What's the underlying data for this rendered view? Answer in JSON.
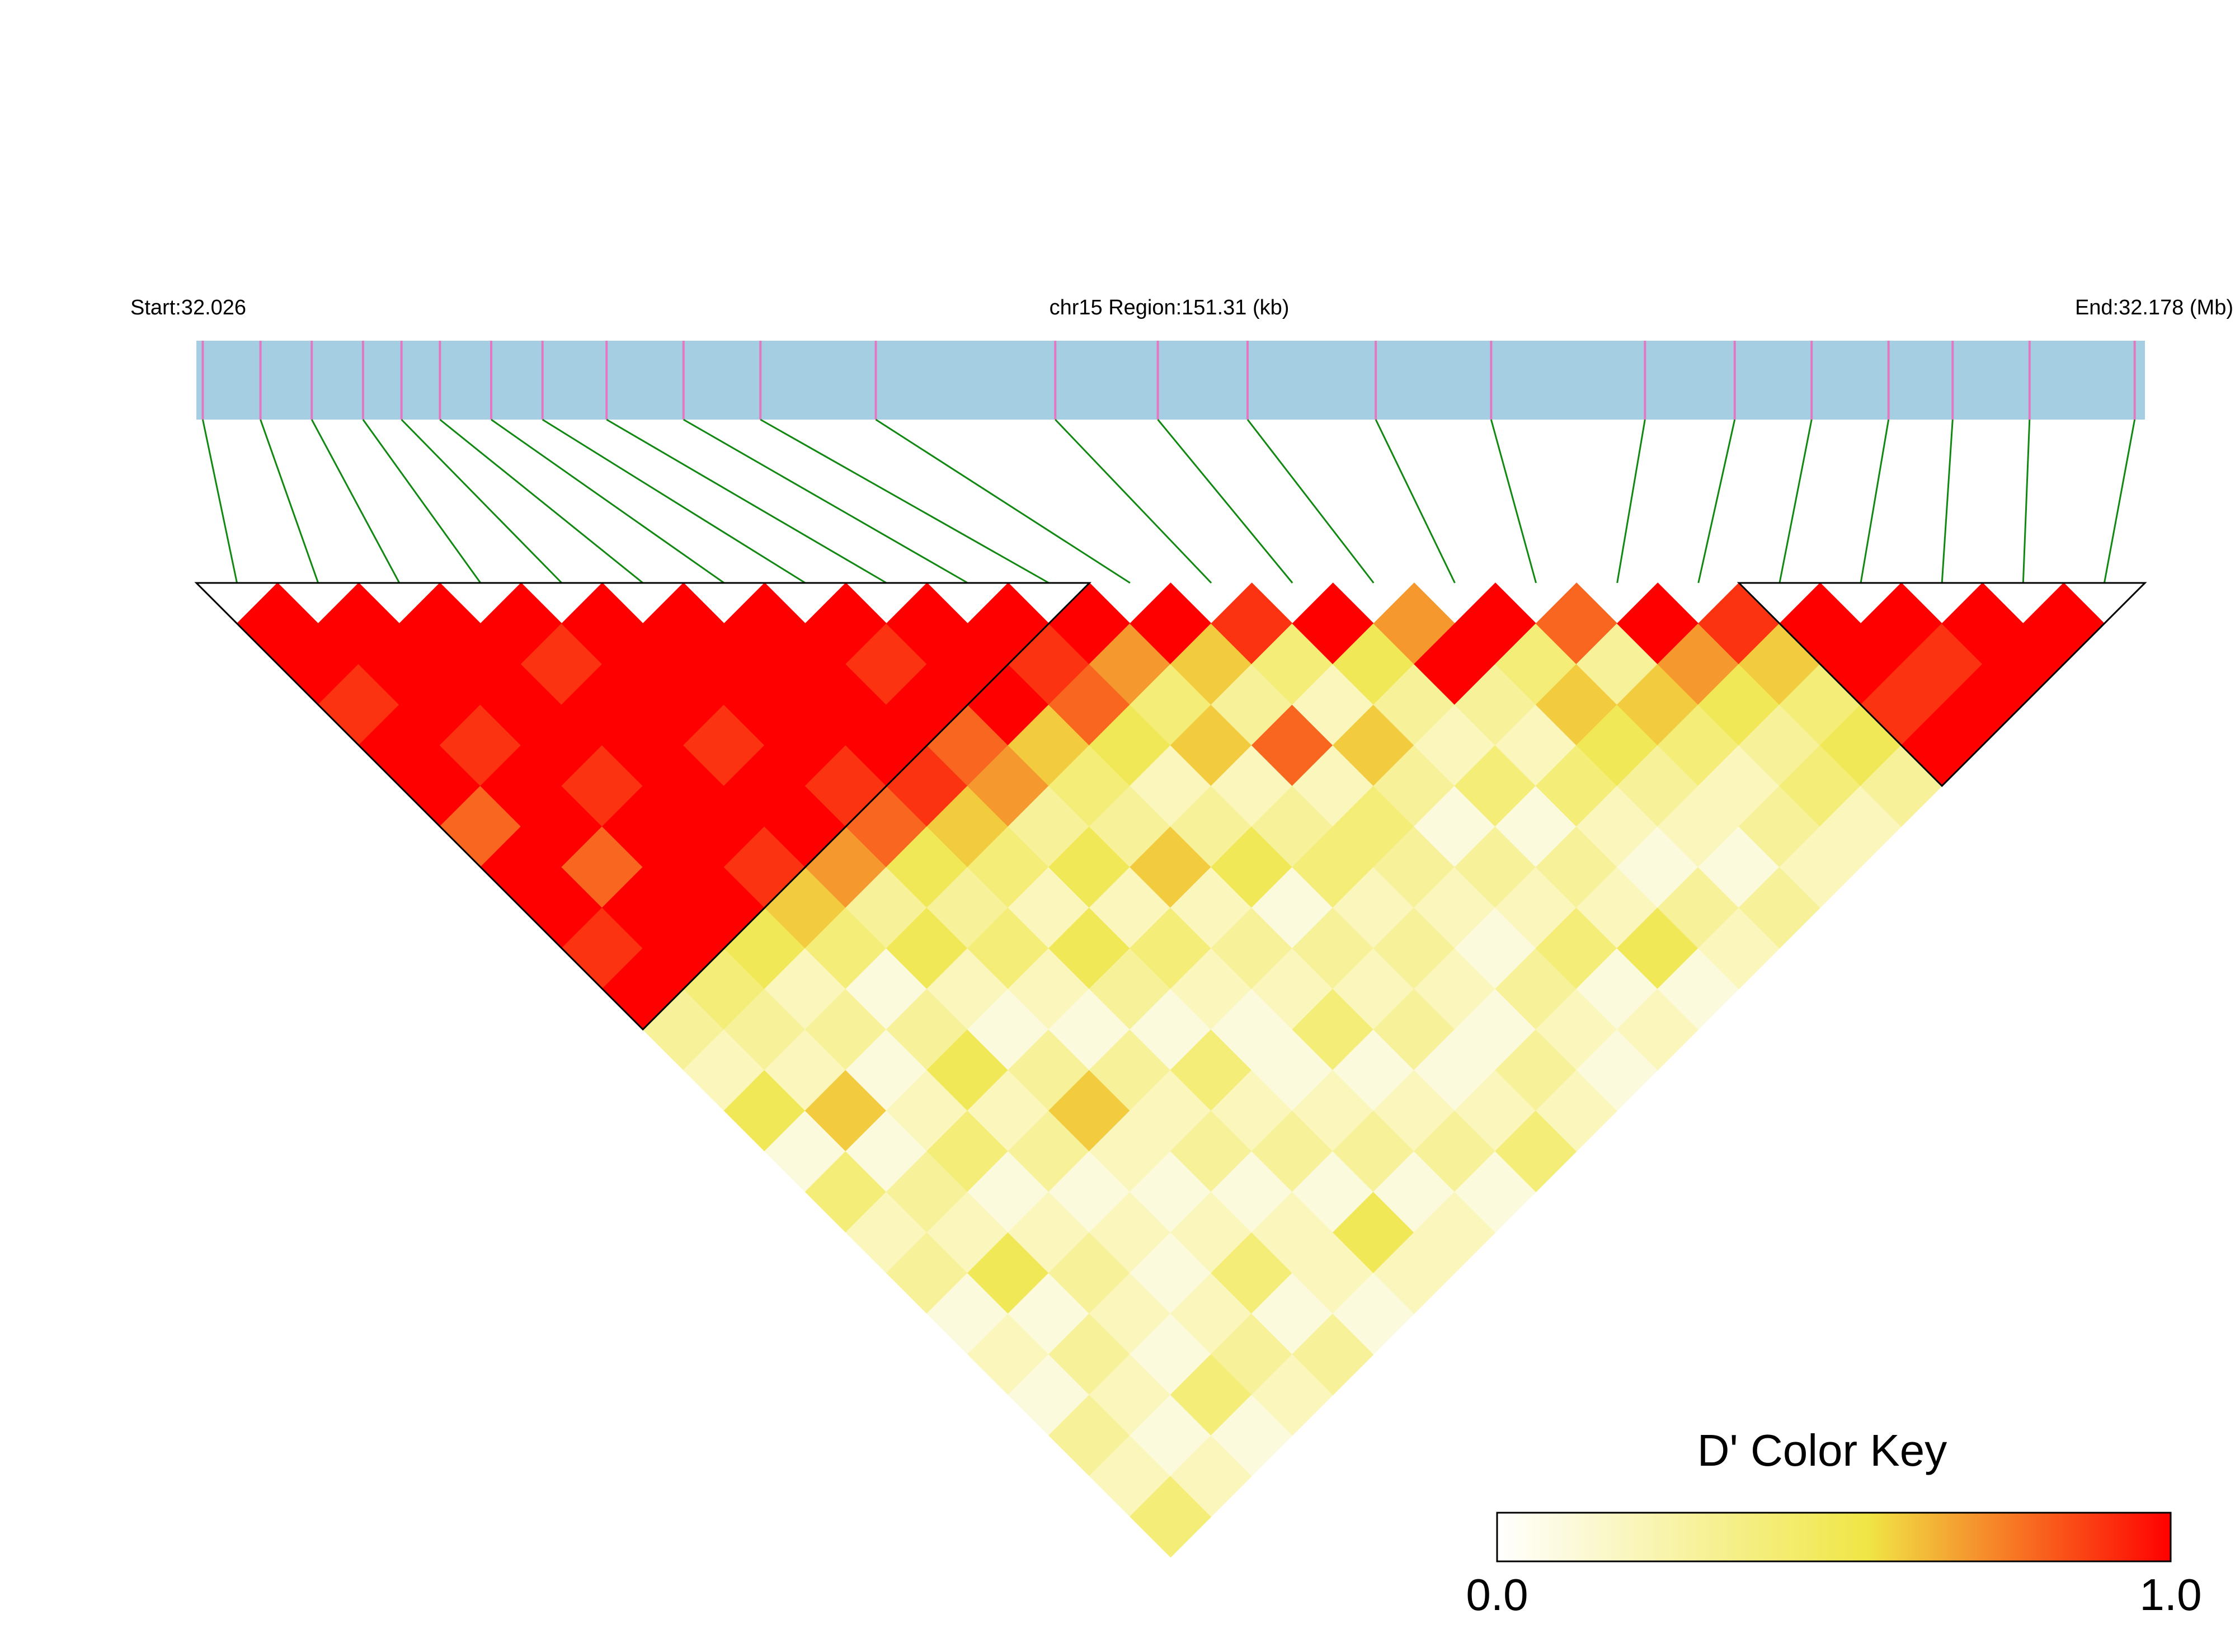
{
  "chart_data": {
    "type": "ld_heatmap",
    "start_label": "Start:32.026",
    "region_label": "chr15 Region:151.31 (kb)",
    "end_label": "End:32.178 (Mb)",
    "xlim": [
      32.026,
      32.178
    ],
    "snp_positions": [
      32.0265,
      32.031,
      32.035,
      32.039,
      32.042,
      32.045,
      32.049,
      32.053,
      32.058,
      32.064,
      32.07,
      32.079,
      32.093,
      32.101,
      32.108,
      32.118,
      32.127,
      32.139,
      32.146,
      32.152,
      32.158,
      32.163,
      32.169,
      32.1772
    ],
    "matrix": [
      [
        1,
        1,
        0.9,
        1,
        1,
        0.8,
        1,
        1,
        0.9,
        1,
        0.3,
        0.2,
        0.5,
        0.1,
        0.4,
        0.2,
        0.3,
        0.1,
        0.2,
        0.1,
        0.3,
        0.2,
        0.4
      ],
      [
        1,
        1,
        1,
        0.9,
        1,
        1,
        0.8,
        1,
        1,
        0.4,
        0.3,
        0.2,
        0.6,
        0.1,
        0.3,
        0.2,
        0.5,
        0.1,
        0.3,
        0.2,
        0.1,
        0.2
      ],
      [
        1,
        1,
        1,
        1,
        0.9,
        1,
        1,
        1,
        0.5,
        0.2,
        0.3,
        0.1,
        0.2,
        0.4,
        0.1,
        0.2,
        0.3,
        0.2,
        0.1,
        0.4,
        0.1
      ],
      [
        1,
        0.9,
        1,
        1,
        1,
        1,
        0.9,
        0.6,
        0.4,
        0.1,
        0.3,
        0.5,
        0.2,
        0.3,
        0.1,
        0.2,
        0.1,
        0.2,
        0.3,
        0.2
      ],
      [
        1,
        1,
        1,
        0.9,
        1,
        1,
        0.7,
        0.3,
        0.5,
        0.2,
        0.1,
        0.3,
        0.6,
        0.2,
        0.1,
        0.2,
        0.4,
        0.1,
        0.3
      ],
      [
        1,
        1,
        1,
        1,
        0.9,
        0.8,
        0.5,
        0.3,
        0.4,
        0.2,
        0.1,
        0.3,
        0.2,
        0.3,
        0.1,
        0.2,
        0.2,
        0.1
      ],
      [
        1,
        1,
        1,
        1,
        0.9,
        0.6,
        0.4,
        0.2,
        0.5,
        0.3,
        0.1,
        0.4,
        0.2,
        0.3,
        0.1,
        0.5,
        0.2
      ],
      [
        1,
        0.9,
        1,
        0.8,
        0.7,
        0.3,
        0.5,
        0.2,
        0.4,
        0.2,
        0.1,
        0.1,
        0.2,
        0.3,
        0.1,
        0.2
      ],
      [
        1,
        1,
        1,
        0.6,
        0.4,
        0.3,
        0.6,
        0.2,
        0.3,
        0.2,
        0.4,
        0.1,
        0.2,
        0.3,
        0.1
      ],
      [
        1,
        0.9,
        0.8,
        0.5,
        0.2,
        0.3,
        0.5,
        0.1,
        0.3,
        0.2,
        0.3,
        0.1,
        0.2,
        0.4
      ],
      [
        1,
        0.7,
        0.4,
        0.6,
        0.2,
        0.3,
        0.4,
        0.2,
        0.3,
        0.2,
        0.1,
        0.3,
        0.2
      ],
      [
        1,
        0.6,
        0.3,
        0.8,
        0.2,
        0.4,
        0.3,
        0.2,
        0.1,
        0.3,
        0.2,
        0.1
      ],
      [
        0.9,
        0.4,
        0.2,
        0.6,
        0.3,
        0.1,
        0.3,
        0.2,
        0.4,
        0.1,
        0.2
      ],
      [
        1,
        0.5,
        0.3,
        0.2,
        0.4,
        0.1,
        0.3,
        0.2,
        0.5,
        0.1
      ],
      [
        0.7,
        1,
        0.3,
        0.2,
        0.4,
        0.2,
        0.1,
        0.3,
        0.2
      ],
      [
        1,
        0.4,
        0.6,
        0.5,
        0.3,
        0.2,
        0.1,
        0.3
      ],
      [
        0.8,
        0.3,
        0.6,
        0.4,
        0.2,
        0.3,
        0.2
      ],
      [
        1,
        0.7,
        0.5,
        0.3,
        0.4,
        0.2
      ],
      [
        0.9,
        0.6,
        0.4,
        0.5,
        0.3
      ],
      [
        1,
        1,
        0.9,
        1
      ],
      [
        1,
        0.9,
        1
      ],
      [
        1,
        1
      ],
      [
        1
      ]
    ],
    "blocks": [
      [
        0,
        10
      ],
      [
        19,
        23
      ]
    ],
    "color_key": {
      "title": "D' Color Key",
      "ticks": [
        {
          "value": 0,
          "label": "0.0"
        },
        {
          "value": 1,
          "label": "1.0"
        }
      ]
    }
  }
}
